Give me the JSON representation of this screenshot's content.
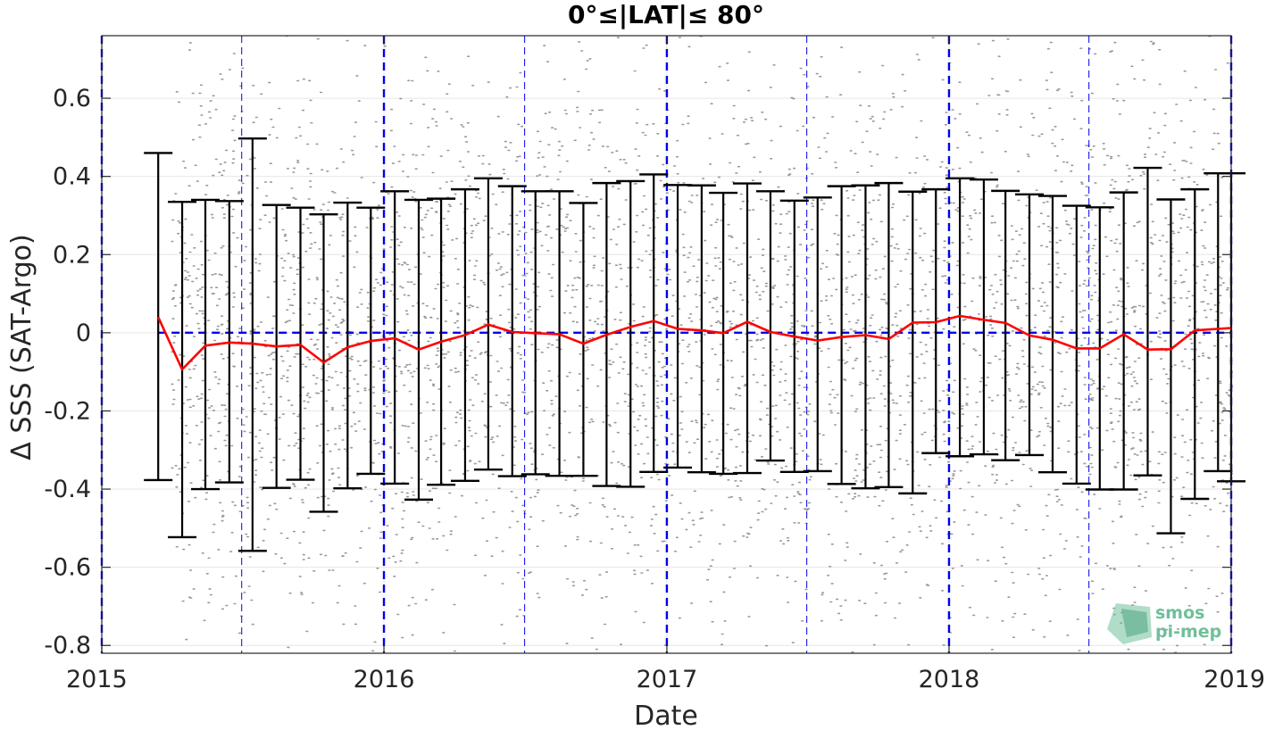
{
  "chart_data": {
    "type": "scatter",
    "title": "0°≤|LAT|≤ 80°",
    "xlabel": "Date",
    "ylabel": "Δ SSS (SAT-Argo)",
    "xlim": [
      "2015-01-01",
      "2019-01-01"
    ],
    "ylim": [
      -0.82,
      0.76
    ],
    "x_ticks": [
      {
        "date": "2015-01-01",
        "label": "2015"
      },
      {
        "date": "2016-01-01",
        "label": "2016"
      },
      {
        "date": "2017-01-01",
        "label": "2017"
      },
      {
        "date": "2018-01-01",
        "label": "2018"
      },
      {
        "date": "2019-01-01",
        "label": "2019"
      }
    ],
    "y_ticks": [
      -0.8,
      -0.6,
      -0.4,
      -0.2,
      0,
      0.2,
      0.4,
      0.6
    ],
    "y_tick_labels": [
      "-0.8",
      "-0.6",
      "-0.4",
      "-0.2",
      "0",
      "0.2",
      "0.4",
      "0.6"
    ],
    "grid": true,
    "year_lines": [
      "2015-01-01",
      "2016-01-01",
      "2017-01-01",
      "2018-01-01",
      "2019-01-01"
    ],
    "midyear_lines": [
      "2015-07-01",
      "2016-07-01",
      "2017-07-01",
      "2018-07-01"
    ],
    "zero_line": 0,
    "scatter_x_range": [
      "2015-04-01",
      "2019-01-01"
    ],
    "scatter_y_range": [
      -0.82,
      0.76
    ],
    "series": [
      {
        "kind": "mean-with-errorbars",
        "x": [
          "2015-03-15",
          "2015-04-15",
          "2015-05-15",
          "2015-06-15",
          "2015-07-15",
          "2015-08-15",
          "2015-09-15",
          "2015-10-15",
          "2015-11-15",
          "2015-12-15",
          "2016-01-15",
          "2016-02-15",
          "2016-03-15",
          "2016-04-15",
          "2016-05-15",
          "2016-06-15",
          "2016-07-15",
          "2016-08-15",
          "2016-09-15",
          "2016-10-15",
          "2016-11-15",
          "2016-12-15",
          "2017-01-15",
          "2017-02-15",
          "2017-03-15",
          "2017-04-15",
          "2017-05-15",
          "2017-06-15",
          "2017-07-15",
          "2017-08-15",
          "2017-09-15",
          "2017-10-15",
          "2017-11-15",
          "2017-12-15",
          "2018-01-15",
          "2018-02-15",
          "2018-03-15",
          "2018-04-15",
          "2018-05-15",
          "2018-06-15",
          "2018-07-15",
          "2018-08-15",
          "2018-09-15",
          "2018-10-15",
          "2018-11-15",
          "2018-12-15",
          "2019-01-01"
        ],
        "mean": [
          0.04,
          -0.094,
          -0.033,
          -0.025,
          -0.028,
          -0.035,
          -0.031,
          -0.076,
          -0.037,
          -0.021,
          -0.014,
          -0.043,
          -0.023,
          -0.006,
          0.021,
          0.002,
          -0.001,
          -0.004,
          -0.028,
          -0.005,
          0.015,
          0.03,
          0.01,
          0.006,
          -0.001,
          0.028,
          0.002,
          -0.01,
          -0.02,
          -0.011,
          -0.006,
          -0.016,
          0.026,
          0.027,
          0.043,
          0.033,
          0.025,
          -0.007,
          -0.018,
          -0.04,
          -0.04,
          -0.004,
          -0.043,
          -0.042,
          0.006,
          0.01,
          0.012
        ],
        "upper": [
          0.46,
          0.335,
          0.34,
          0.337,
          0.497,
          0.327,
          0.32,
          0.303,
          0.333,
          0.32,
          0.362,
          0.34,
          0.343,
          0.367,
          0.395,
          0.375,
          0.362,
          0.362,
          0.332,
          0.383,
          0.388,
          0.405,
          0.378,
          0.377,
          0.358,
          0.382,
          0.362,
          0.338,
          0.346,
          0.375,
          0.377,
          0.383,
          0.361,
          0.367,
          0.395,
          0.392,
          0.363,
          0.354,
          0.35,
          0.325,
          0.321,
          0.359,
          0.422,
          0.341,
          0.367,
          0.408,
          0.408
        ],
        "lower": [
          -0.377,
          -0.523,
          -0.4,
          -0.383,
          -0.558,
          -0.397,
          -0.376,
          -0.458,
          -0.398,
          -0.361,
          -0.386,
          -0.427,
          -0.389,
          -0.379,
          -0.35,
          -0.367,
          -0.362,
          -0.366,
          -0.366,
          -0.392,
          -0.394,
          -0.356,
          -0.345,
          -0.357,
          -0.361,
          -0.359,
          -0.327,
          -0.356,
          -0.354,
          -0.387,
          -0.398,
          -0.395,
          -0.411,
          -0.308,
          -0.316,
          -0.311,
          -0.326,
          -0.313,
          -0.357,
          -0.386,
          -0.401,
          -0.401,
          -0.365,
          -0.513,
          -0.425,
          -0.354,
          -0.38
        ]
      }
    ],
    "colors": {
      "mean_line": "#ff0000",
      "errorbars": "#000000",
      "scatter": "#808080",
      "zero_line": "#0000ee",
      "year_lines": "#0000ee",
      "grid": "#e6e6e6",
      "axes": "#262626"
    }
  },
  "logo": {
    "line1": "smos",
    "line2": "pi-mep"
  }
}
